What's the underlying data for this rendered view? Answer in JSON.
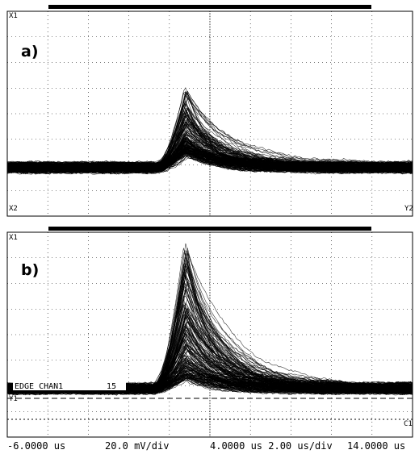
{
  "panels": [
    {
      "label": "a)",
      "marker_top": "X1",
      "marker_bottom_left": "X2",
      "marker_bottom_right": "Y2"
    },
    {
      "label": "b)",
      "marker_top": "X1",
      "marker_bottom_left": "Y1",
      "marker_bottom_right": "C1",
      "trigger_text": "EDGE CHAN1",
      "trigger_value": "15"
    }
  ],
  "footer": {
    "left": "-6.0000 us",
    "mid_left": "20.0 mV/div",
    "mid_right": "4.0000 us 2.00 us/div",
    "right": "14.0000 us"
  },
  "chart_data": [
    {
      "type": "line",
      "title": "a)",
      "xlim_us": [
        -6.0,
        14.0
      ],
      "x_div": 2.0,
      "y_div_mV": 20.0,
      "grid": true,
      "trace_count": 200,
      "baseline_div": 1.9,
      "pulse_onset_us": 1.4,
      "pulse_peak_time_us": 2.8,
      "pulse_peak_amplitude_div": [
        0.6,
        3.1
      ],
      "color": "#000000"
    },
    {
      "type": "line",
      "title": "b)",
      "xlim_us": [
        -6.0,
        14.0
      ],
      "x_div": 2.0,
      "y_div_mV": 20.0,
      "grid": true,
      "trace_count": 200,
      "baseline_div": 1.9,
      "pulse_onset_us": 1.3,
      "pulse_peak_time_us": 2.8,
      "pulse_peak_amplitude_div": [
        0.5,
        5.6
      ],
      "trigger_level_div": 2.0,
      "color": "#000000"
    }
  ]
}
